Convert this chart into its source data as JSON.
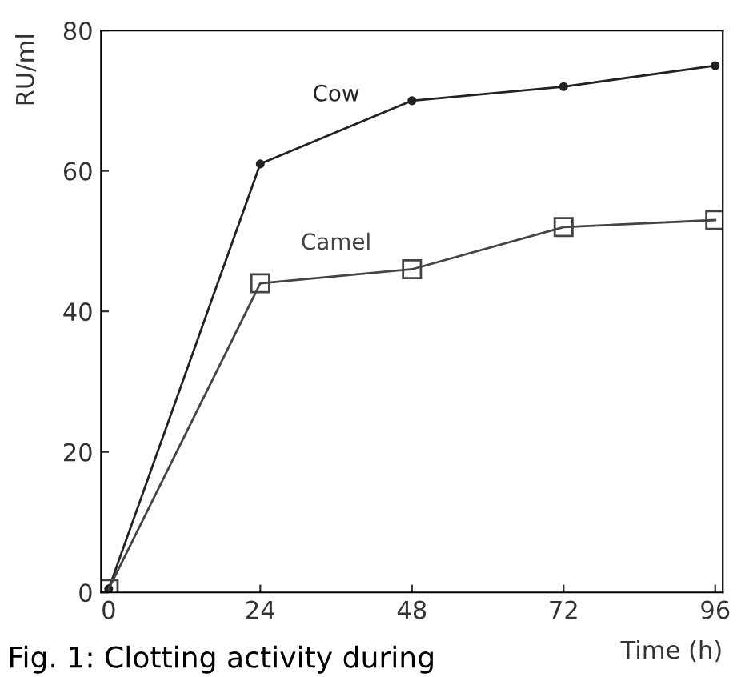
{
  "chart_data": {
    "type": "line",
    "xlabel": "Time (h)",
    "ylabel": "RU/ml",
    "x": [
      0,
      24,
      48,
      72,
      96
    ],
    "series": [
      {
        "name": "Cow",
        "color": "#222222",
        "marker": "circle",
        "values": [
          0.5,
          61,
          70,
          72,
          75
        ]
      },
      {
        "name": "Camel",
        "color": "#444444",
        "marker": "square",
        "values": [
          0.5,
          44,
          46,
          52,
          53
        ]
      }
    ],
    "xlim": [
      -1.2,
      97.2
    ],
    "ylim": [
      0,
      80
    ],
    "xticks": [
      0,
      24,
      48,
      72,
      96
    ],
    "yticks": [
      0,
      20,
      40,
      60,
      80
    ],
    "grid": false,
    "legend": false,
    "line_style": "solid",
    "annotations": [
      "Fig. 1: Clotting activity during"
    ]
  }
}
